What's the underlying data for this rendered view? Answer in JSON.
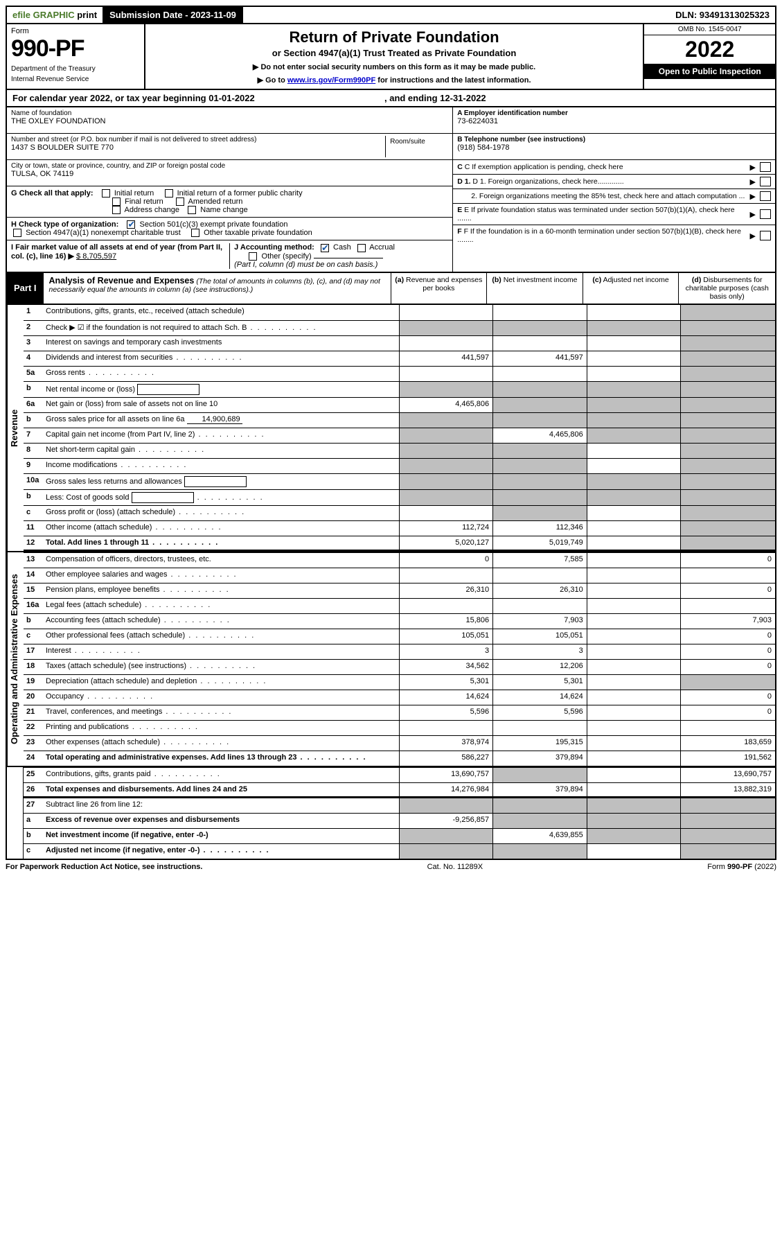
{
  "topbar": {
    "efile_prefix": "efile",
    "efile_graphic": "GRAPHIC",
    "efile_print": "print",
    "sub_label": "Submission Date - 2023-11-09",
    "dln": "DLN: 93491313025323"
  },
  "header": {
    "form_label": "Form",
    "form_number": "990-PF",
    "dept1": "Department of the Treasury",
    "dept2": "Internal Revenue Service",
    "title": "Return of Private Foundation",
    "subtitle1": "or Section 4947(a)(1) Trust Treated as Private Foundation",
    "subtitle2a": "▶ Do not enter social security numbers on this form as it may be made public.",
    "subtitle2b": "▶ Go to ",
    "subtitle2_link": "www.irs.gov/Form990PF",
    "subtitle2c": " for instructions and the latest information.",
    "omb": "OMB No. 1545-0047",
    "year": "2022",
    "open": "Open to Public Inspection"
  },
  "cal_year": {
    "prefix": "For calendar year 2022, or tax year beginning ",
    "begin": "01-01-2022",
    "mid": " , and ending ",
    "end": "12-31-2022"
  },
  "info_left": {
    "name_lbl": "Name of foundation",
    "name_val": "THE OXLEY FOUNDATION",
    "addr_lbl": "Number and street (or P.O. box number if mail is not delivered to street address)",
    "addr_val": "1437 S BOULDER SUITE 770",
    "room_lbl": "Room/suite",
    "room_val": "",
    "city_lbl": "City or town, state or province, country, and ZIP or foreign postal code",
    "city_val": "TULSA, OK  74119",
    "g_label": "G Check all that apply:",
    "g_opts": [
      "Initial return",
      "Initial return of a former public charity",
      "Final return",
      "Amended return",
      "Address change",
      "Name change"
    ],
    "h_label": "H Check type of organization:",
    "h_opt1": "Section 501(c)(3) exempt private foundation",
    "h_opt2": "Section 4947(a)(1) nonexempt charitable trust",
    "h_opt3": "Other taxable private foundation",
    "i_label": "I Fair market value of all assets at end of year (from Part II, col. (c), line 16) ▶",
    "i_val": "$  8,705,597",
    "j_label": "J Accounting method:",
    "j_opt1": "Cash",
    "j_opt2": "Accrual",
    "j_opt3": "Other (specify)",
    "j_note": "(Part I, column (d) must be on cash basis.)"
  },
  "info_right": {
    "a_lbl": "A Employer identification number",
    "a_val": "73-6224031",
    "b_lbl": "B Telephone number (see instructions)",
    "b_val": "(918) 584-1978",
    "c_txt": "C If exemption application is pending, check here",
    "d1_txt": "D 1. Foreign organizations, check here.............",
    "d2_txt": "2. Foreign organizations meeting the 85% test, check here and attach computation ...",
    "e_txt": "E If private foundation status was terminated under section 507(b)(1)(A), check here .......",
    "f_txt": "F If the foundation is in a 60-month termination under section 507(b)(1)(B), check here ........"
  },
  "part1": {
    "label": "Part I",
    "title": "Analysis of Revenue and Expenses",
    "title_note": "(The total of amounts in columns (b), (c), and (d) may not necessarily equal the amounts in column (a) (see instructions).)",
    "cols": {
      "a": "(a)",
      "a_txt": "Revenue and expenses per books",
      "b": "(b)",
      "b_txt": "Net investment income",
      "c": "(c)",
      "c_txt": "Adjusted net income",
      "d": "(d)",
      "d_txt": "Disbursements for charitable purposes (cash basis only)"
    }
  },
  "sides": {
    "rev": "Revenue",
    "exp": "Operating and Administrative Expenses"
  },
  "rows": [
    {
      "n": "1",
      "d": "Contributions, gifts, grants, etc., received (attach schedule)",
      "a": "",
      "b": "",
      "c": "",
      "dd": "",
      "grey_d": true
    },
    {
      "n": "2",
      "d": "Check ▶ ☑ if the foundation is not required to attach Sch. B",
      "dots": true,
      "a": "g",
      "b": "g",
      "c": "g",
      "dd": "g"
    },
    {
      "n": "3",
      "d": "Interest on savings and temporary cash investments",
      "a": "",
      "b": "",
      "c": "",
      "dd": "",
      "grey_d": true
    },
    {
      "n": "4",
      "d": "Dividends and interest from securities",
      "dots": true,
      "a": "441,597",
      "b": "441,597",
      "c": "",
      "dd": "",
      "grey_d": true
    },
    {
      "n": "5a",
      "d": "Gross rents",
      "dots": true,
      "a": "",
      "b": "",
      "c": "",
      "dd": "",
      "grey_d": true
    },
    {
      "n": "b",
      "d": "Net rental income or (loss)",
      "inline": true,
      "a": "g",
      "b": "g",
      "c": "g",
      "dd": "g"
    },
    {
      "n": "6a",
      "d": "Net gain or (loss) from sale of assets not on line 10",
      "a": "4,465,806",
      "b": "g",
      "c": "g",
      "dd": "g"
    },
    {
      "n": "b",
      "d": "Gross sales price for all assets on line 6a",
      "inline_val": "14,900,689",
      "a": "g",
      "b": "g",
      "c": "g",
      "dd": "g"
    },
    {
      "n": "7",
      "d": "Capital gain net income (from Part IV, line 2)",
      "dots": true,
      "a": "g",
      "b": "4,465,806",
      "c": "g",
      "dd": "g"
    },
    {
      "n": "8",
      "d": "Net short-term capital gain",
      "dots": true,
      "a": "g",
      "b": "g",
      "c": "",
      "dd": "g"
    },
    {
      "n": "9",
      "d": "Income modifications",
      "dots": true,
      "a": "g",
      "b": "g",
      "c": "",
      "dd": "g"
    },
    {
      "n": "10a",
      "d": "Gross sales less returns and allowances",
      "inline": true,
      "a": "g",
      "b": "g",
      "c": "g",
      "dd": "g"
    },
    {
      "n": "b",
      "d": "Less: Cost of goods sold",
      "dots": true,
      "inline": true,
      "a": "g",
      "b": "g",
      "c": "g",
      "dd": "g"
    },
    {
      "n": "c",
      "d": "Gross profit or (loss) (attach schedule)",
      "dots": true,
      "a": "",
      "b": "g",
      "c": "",
      "dd": "g"
    },
    {
      "n": "11",
      "d": "Other income (attach schedule)",
      "dots": true,
      "a": "112,724",
      "b": "112,346",
      "c": "",
      "dd": "",
      "grey_d": true
    },
    {
      "n": "12",
      "d": "Total. Add lines 1 through 11",
      "dots": true,
      "bold": true,
      "a": "5,020,127",
      "b": "5,019,749",
      "c": "",
      "dd": "",
      "grey_d": true,
      "sect_end": true
    },
    {
      "n": "13",
      "d": "Compensation of officers, directors, trustees, etc.",
      "a": "0",
      "b": "7,585",
      "c": "",
      "dd": "0"
    },
    {
      "n": "14",
      "d": "Other employee salaries and wages",
      "dots": true,
      "a": "",
      "b": "",
      "c": "",
      "dd": ""
    },
    {
      "n": "15",
      "d": "Pension plans, employee benefits",
      "dots": true,
      "a": "26,310",
      "b": "26,310",
      "c": "",
      "dd": "0"
    },
    {
      "n": "16a",
      "d": "Legal fees (attach schedule)",
      "dots": true,
      "a": "",
      "b": "",
      "c": "",
      "dd": ""
    },
    {
      "n": "b",
      "d": "Accounting fees (attach schedule)",
      "dots": true,
      "a": "15,806",
      "b": "7,903",
      "c": "",
      "dd": "7,903"
    },
    {
      "n": "c",
      "d": "Other professional fees (attach schedule)",
      "dots": true,
      "a": "105,051",
      "b": "105,051",
      "c": "",
      "dd": "0"
    },
    {
      "n": "17",
      "d": "Interest",
      "dots": true,
      "a": "3",
      "b": "3",
      "c": "",
      "dd": "0"
    },
    {
      "n": "18",
      "d": "Taxes (attach schedule) (see instructions)",
      "dots": true,
      "a": "34,562",
      "b": "12,206",
      "c": "",
      "dd": "0"
    },
    {
      "n": "19",
      "d": "Depreciation (attach schedule) and depletion",
      "dots": true,
      "a": "5,301",
      "b": "5,301",
      "c": "",
      "dd": "",
      "grey_d": true
    },
    {
      "n": "20",
      "d": "Occupancy",
      "dots": true,
      "a": "14,624",
      "b": "14,624",
      "c": "",
      "dd": "0"
    },
    {
      "n": "21",
      "d": "Travel, conferences, and meetings",
      "dots": true,
      "a": "5,596",
      "b": "5,596",
      "c": "",
      "dd": "0"
    },
    {
      "n": "22",
      "d": "Printing and publications",
      "dots": true,
      "a": "",
      "b": "",
      "c": "",
      "dd": ""
    },
    {
      "n": "23",
      "d": "Other expenses (attach schedule)",
      "dots": true,
      "a": "378,974",
      "b": "195,315",
      "c": "",
      "dd": "183,659"
    },
    {
      "n": "24",
      "d": "Total operating and administrative expenses. Add lines 13 through 23",
      "dots": true,
      "bold": true,
      "a": "586,227",
      "b": "379,894",
      "c": "",
      "dd": "191,562"
    },
    {
      "n": "25",
      "d": "Contributions, gifts, grants paid",
      "dots": true,
      "a": "13,690,757",
      "b": "g",
      "c": "",
      "dd": "13,690,757"
    },
    {
      "n": "26",
      "d": "Total expenses and disbursements. Add lines 24 and 25",
      "bold": true,
      "a": "14,276,984",
      "b": "379,894",
      "c": "",
      "dd": "13,882,319",
      "sect_end": true
    },
    {
      "n": "27",
      "d": "Subtract line 26 from line 12:",
      "a": "g",
      "b": "g",
      "c": "g",
      "dd": "g"
    },
    {
      "n": "a",
      "d": "Excess of revenue over expenses and disbursements",
      "bold": true,
      "a": "-9,256,857",
      "b": "g",
      "c": "g",
      "dd": "g"
    },
    {
      "n": "b",
      "d": "Net investment income (if negative, enter -0-)",
      "bold": true,
      "a": "g",
      "b": "4,639,855",
      "c": "g",
      "dd": "g"
    },
    {
      "n": "c",
      "d": "Adjusted net income (if negative, enter -0-)",
      "dots": true,
      "bold": true,
      "a": "g",
      "b": "g",
      "c": "",
      "dd": "g"
    }
  ],
  "footer": {
    "left": "For Paperwork Reduction Act Notice, see instructions.",
    "mid": "Cat. No. 11289X",
    "right": "Form 990-PF (2022)"
  },
  "colors": {
    "grey": "#bfbfbf",
    "link": "#0000cc",
    "check": "#1a5aa8"
  }
}
